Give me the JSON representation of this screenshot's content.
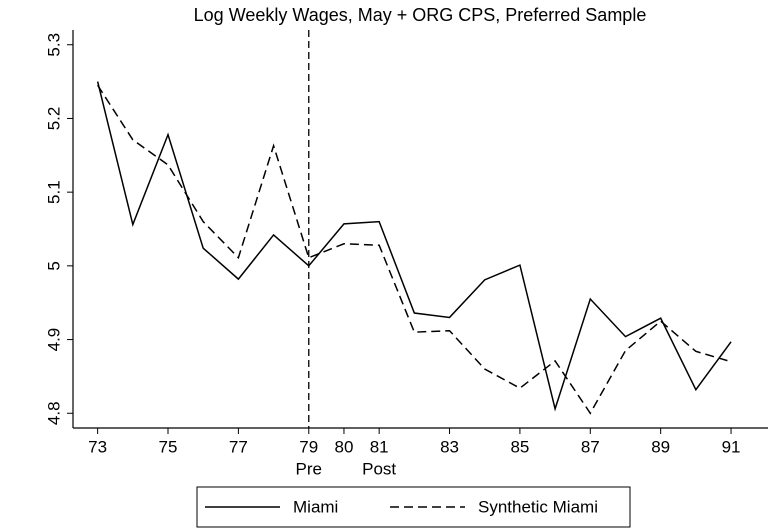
{
  "chart_data": {
    "type": "line",
    "title": "Log Weekly Wages, May + ORG CPS, Preferred Sample",
    "x": [
      73,
      74,
      75,
      76,
      77,
      78,
      79,
      80,
      81,
      82,
      83,
      84,
      85,
      86,
      87,
      88,
      89,
      90,
      91
    ],
    "series": [
      {
        "name": "Miami",
        "color": "#000000",
        "dash": "solid",
        "values": [
          5.25,
          5.056,
          5.178,
          5.024,
          4.982,
          5.042,
          5.0,
          5.057,
          5.06,
          4.936,
          4.93,
          4.981,
          5.001,
          4.806,
          4.955,
          4.904,
          4.929,
          4.832,
          4.897
        ]
      },
      {
        "name": "Synthetic Miami",
        "color": "#000000",
        "dash": "dashed",
        "values": [
          5.245,
          5.171,
          5.137,
          5.06,
          5.011,
          5.163,
          5.011,
          5.03,
          5.028,
          4.91,
          4.912,
          4.86,
          4.834,
          4.871,
          4.8,
          4.885,
          4.925,
          4.884,
          4.87
        ]
      }
    ],
    "xlim": [
      72.3,
      92.05
    ],
    "ylim": [
      4.78,
      5.32
    ],
    "xticks": [
      73,
      75,
      77,
      79,
      80,
      81,
      83,
      85,
      87,
      89,
      91
    ],
    "yticks": [
      4.8,
      4.9,
      5,
      5.1,
      5.2,
      5.3
    ],
    "vline": 79,
    "annotations": [
      {
        "x": 79,
        "text": "Pre"
      },
      {
        "x": 81,
        "text": "Post"
      }
    ],
    "legend": "bottom"
  }
}
